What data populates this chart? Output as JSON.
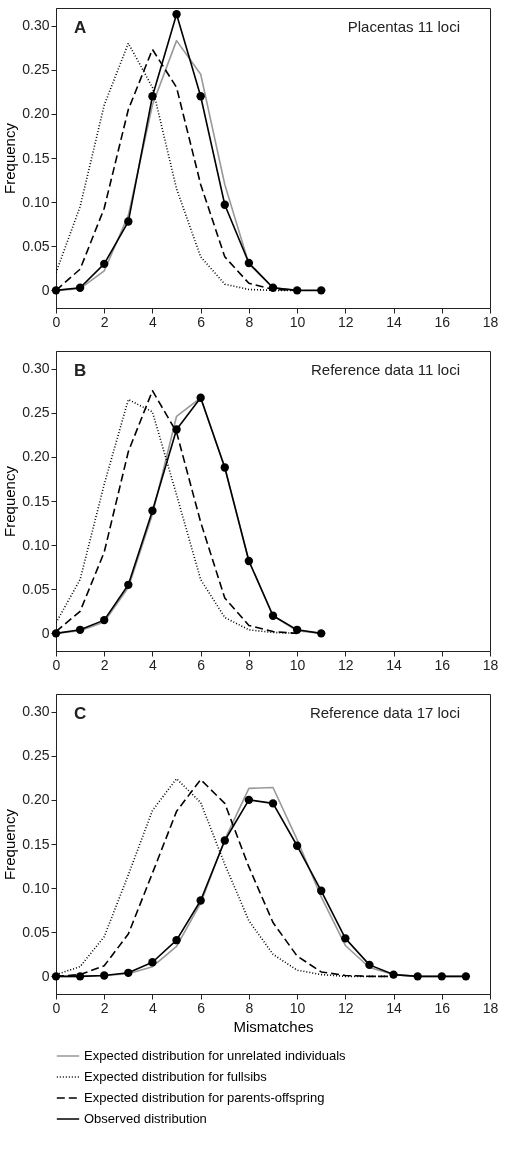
{
  "chart_data": [
    {
      "type": "line",
      "ylabel": "Frequency",
      "annotations": [
        "A",
        "Placentas 11 loci"
      ],
      "x": [
        0,
        1,
        2,
        3,
        4,
        5,
        6,
        7,
        8,
        9,
        10,
        11
      ],
      "xlim": [
        0,
        18
      ],
      "xticks": [
        0,
        2,
        4,
        6,
        8,
        10,
        12,
        14,
        16,
        18
      ],
      "ylim": [
        -0.02,
        0.32
      ],
      "yticks": [
        0,
        0.05,
        {
          "value": 0.1,
          "label": "0.10"
        },
        0.15,
        {
          "value": 0.2,
          "label": "0.20"
        },
        0.25,
        {
          "value": 0.3,
          "label": "0.30"
        }
      ],
      "grid": false,
      "legend": false,
      "series": [
        {
          "color": "#999999",
          "line_style": "solid",
          "values": [
            0,
            0.002,
            0.022,
            0.085,
            0.21,
            0.283,
            0.245,
            0.12,
            0.03,
            0.003,
            0,
            null
          ]
        },
        {
          "color": "#000000",
          "line_style": "dotted",
          "values": [
            0.02,
            0.095,
            0.21,
            0.28,
            0.23,
            0.115,
            0.038,
            0.007,
            0.001,
            0,
            0,
            null
          ]
        },
        {
          "color": "#000000",
          "line_style": "dashed",
          "values": [
            0,
            0.024,
            0.093,
            0.205,
            0.273,
            0.23,
            0.12,
            0.038,
            0.008,
            0.001,
            0,
            null
          ]
        },
        {
          "color": "#000000",
          "line_style": "solid",
          "marker": "circle",
          "values": [
            0,
            0.003,
            0.03,
            0.078,
            0.22,
            0.313,
            0.22,
            0.097,
            0.031,
            0.003,
            0,
            0
          ]
        }
      ]
    },
    {
      "type": "line",
      "ylabel": "Frequency",
      "annotations": [
        "B",
        "Reference data 11 loci"
      ],
      "x": [
        0,
        1,
        2,
        3,
        4,
        5,
        6,
        7,
        8,
        9,
        10,
        11
      ],
      "xlim": [
        0,
        18
      ],
      "xticks": [
        0,
        2,
        4,
        6,
        8,
        10,
        12,
        14,
        16,
        18
      ],
      "ylim": [
        -0.02,
        0.32
      ],
      "yticks": [
        0,
        0.05,
        {
          "value": 0.1,
          "label": "0.10"
        },
        0.15,
        {
          "value": 0.2,
          "label": "0.20"
        },
        0.25,
        {
          "value": 0.3,
          "label": "0.30"
        }
      ],
      "grid": false,
      "legend": false,
      "series": [
        {
          "color": "#999999",
          "line_style": "solid",
          "values": [
            0,
            0.003,
            0.013,
            0.052,
            0.135,
            0.246,
            0.267,
            0.188,
            0.082,
            0.02,
            0.003,
            0
          ]
        },
        {
          "color": "#000000",
          "line_style": "dotted",
          "values": [
            0.012,
            0.061,
            0.169,
            0.265,
            0.251,
            0.157,
            0.061,
            0.018,
            0.004,
            0.001,
            0,
            null
          ]
        },
        {
          "color": "#000000",
          "line_style": "dashed",
          "values": [
            0.002,
            0.025,
            0.092,
            0.206,
            0.275,
            0.228,
            0.126,
            0.04,
            0.009,
            0.002,
            0,
            null
          ]
        },
        {
          "color": "#000000",
          "line_style": "solid",
          "marker": "circle",
          "values": [
            0,
            0.004,
            0.015,
            0.055,
            0.139,
            0.231,
            0.267,
            0.188,
            0.082,
            0.02,
            0.004,
            0
          ]
        }
      ]
    },
    {
      "type": "line",
      "xlabel": "Mismatches",
      "ylabel": "Frequency",
      "annotations": [
        "C",
        "Reference data 17 loci"
      ],
      "x": [
        0,
        1,
        2,
        3,
        4,
        5,
        6,
        7,
        8,
        9,
        10,
        11,
        12,
        13,
        14,
        15,
        16,
        17
      ],
      "xlim": [
        0,
        18
      ],
      "xticks": [
        0,
        2,
        4,
        6,
        8,
        10,
        12,
        14,
        16,
        18
      ],
      "ylim": [
        -0.02,
        0.32
      ],
      "yticks": [
        0,
        0.05,
        {
          "value": 0.1,
          "label": "0.10"
        },
        0.15,
        {
          "value": 0.2,
          "label": "0.20"
        },
        0.25,
        {
          "value": 0.3,
          "label": "0.30"
        }
      ],
      "grid": false,
      "legend": "bottom",
      "series": [
        {
          "name": "Expected distribution for unrelated individuals",
          "color": "#999999",
          "line_style": "solid",
          "values": [
            0,
            0,
            0.001,
            0.003,
            0.011,
            0.034,
            0.083,
            0.155,
            0.213,
            0.214,
            0.155,
            0.09,
            0.035,
            0.01,
            0.002,
            0,
            0,
            0
          ]
        },
        {
          "name": "Expected distribution for fullsibs",
          "color": "#000000",
          "line_style": "dotted",
          "values": [
            0.002,
            0.011,
            0.045,
            0.115,
            0.188,
            0.224,
            0.197,
            0.127,
            0.063,
            0.025,
            0.007,
            0.002,
            0,
            0,
            0,
            null,
            null,
            null
          ]
        },
        {
          "name": "Expected distribution for parents-offspring",
          "color": "#000000",
          "line_style": "dashed",
          "values": [
            0,
            0.002,
            0.012,
            0.048,
            0.117,
            0.187,
            0.223,
            0.196,
            0.124,
            0.061,
            0.023,
            0.005,
            0.001,
            0,
            0,
            null,
            null,
            null
          ]
        },
        {
          "name": "Observed distribution",
          "color": "#000000",
          "line_style": "solid",
          "marker": "circle",
          "values": [
            0,
            0,
            0.001,
            0.004,
            0.016,
            0.041,
            0.086,
            0.154,
            0.2,
            0.196,
            0.148,
            0.097,
            0.043,
            0.013,
            0.002,
            0,
            0,
            0
          ]
        }
      ]
    }
  ]
}
